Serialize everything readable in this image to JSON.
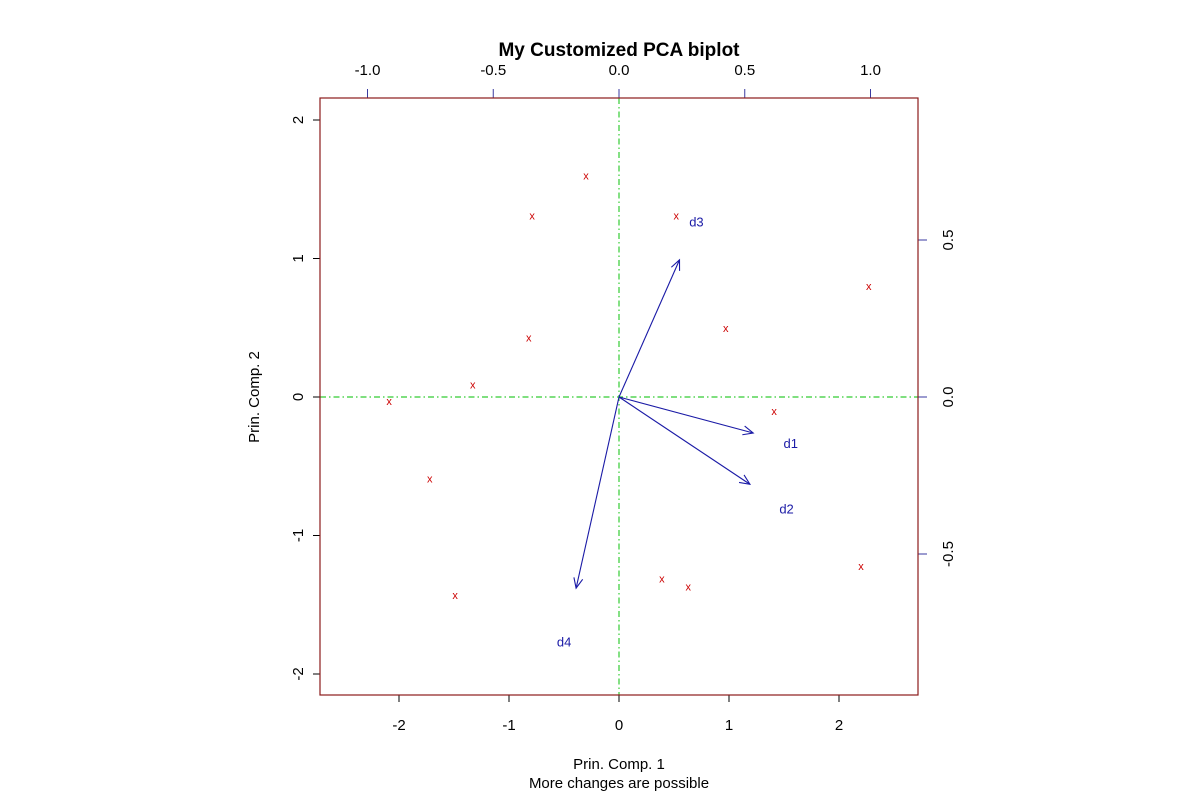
{
  "chart_data": {
    "type": "scatter",
    "title": "My Customized PCA biplot",
    "xlabel": "Prin. Comp. 1",
    "ylabel": "Prin. Comp. 2",
    "subtitle": "More changes are possible",
    "xlim": [
      -2.7,
      2.7
    ],
    "ylim": [
      -2.15,
      2.15
    ],
    "x_ticks": [
      "-2",
      "-1",
      "0",
      "1",
      "2"
    ],
    "y_ticks": [
      "-2",
      "-1",
      "0",
      "1",
      "2"
    ],
    "top_ticks": [
      "-1.0",
      "-0.5",
      "0.0",
      "0.5",
      "1.0"
    ],
    "right_ticks": [
      "-0.5",
      "0.0",
      "0.5"
    ],
    "point_marker": "x",
    "points": [
      {
        "x": -0.3,
        "y": 1.6
      },
      {
        "x": -0.79,
        "y": 1.31
      },
      {
        "x": 0.52,
        "y": 1.31
      },
      {
        "x": 2.27,
        "y": 0.8
      },
      {
        "x": 0.97,
        "y": 0.5
      },
      {
        "x": -0.82,
        "y": 0.43
      },
      {
        "x": -1.33,
        "y": 0.09
      },
      {
        "x": -2.09,
        "y": -0.03
      },
      {
        "x": 1.41,
        "y": -0.1
      },
      {
        "x": -1.72,
        "y": -0.59
      },
      {
        "x": 2.2,
        "y": -1.22
      },
      {
        "x": 0.39,
        "y": -1.31
      },
      {
        "x": 0.63,
        "y": -1.37
      },
      {
        "x": -1.49,
        "y": -1.43
      }
    ],
    "loadings": [
      {
        "label": "d1",
        "x": 1.22,
        "y": -0.26
      },
      {
        "label": "d2",
        "x": 1.19,
        "y": -0.63
      },
      {
        "label": "d3",
        "x": 0.55,
        "y": 0.99
      },
      {
        "label": "d4",
        "x": -0.39,
        "y": -1.38
      }
    ],
    "loading_label_offset_scale": 1.28,
    "reference_lines": [
      {
        "axis": "x",
        "value": 0
      },
      {
        "axis": "y",
        "value": 0
      }
    ],
    "colors": {
      "points": "#cc0000",
      "arrows": "#1a1aa6",
      "reference_lines": "#33cc33",
      "plot_border": "#8b1a1a",
      "secondary_axes": "#3a3aa0"
    }
  }
}
